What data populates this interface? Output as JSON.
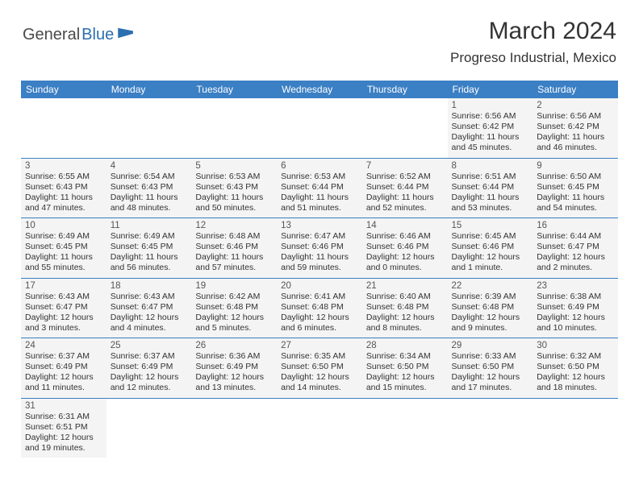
{
  "logo": {
    "text1": "General",
    "text2": "Blue"
  },
  "title": "March 2024",
  "location": "Progreso Industrial, Mexico",
  "colors": {
    "headerBlue": "#3b7fc4",
    "logoBlue": "#2b6fb0",
    "cellBg": "#f4f4f4",
    "divider": "#3b7fc4"
  },
  "weekdays": [
    "Sunday",
    "Monday",
    "Tuesday",
    "Wednesday",
    "Thursday",
    "Friday",
    "Saturday"
  ],
  "weeks": [
    [
      null,
      null,
      null,
      null,
      null,
      {
        "d": "1",
        "sr": "6:56 AM",
        "ss": "6:42 PM",
        "dl": "11 hours and 45 minutes."
      },
      {
        "d": "2",
        "sr": "6:56 AM",
        "ss": "6:42 PM",
        "dl": "11 hours and 46 minutes."
      }
    ],
    [
      {
        "d": "3",
        "sr": "6:55 AM",
        "ss": "6:43 PM",
        "dl": "11 hours and 47 minutes."
      },
      {
        "d": "4",
        "sr": "6:54 AM",
        "ss": "6:43 PM",
        "dl": "11 hours and 48 minutes."
      },
      {
        "d": "5",
        "sr": "6:53 AM",
        "ss": "6:43 PM",
        "dl": "11 hours and 50 minutes."
      },
      {
        "d": "6",
        "sr": "6:53 AM",
        "ss": "6:44 PM",
        "dl": "11 hours and 51 minutes."
      },
      {
        "d": "7",
        "sr": "6:52 AM",
        "ss": "6:44 PM",
        "dl": "11 hours and 52 minutes."
      },
      {
        "d": "8",
        "sr": "6:51 AM",
        "ss": "6:44 PM",
        "dl": "11 hours and 53 minutes."
      },
      {
        "d": "9",
        "sr": "6:50 AM",
        "ss": "6:45 PM",
        "dl": "11 hours and 54 minutes."
      }
    ],
    [
      {
        "d": "10",
        "sr": "6:49 AM",
        "ss": "6:45 PM",
        "dl": "11 hours and 55 minutes."
      },
      {
        "d": "11",
        "sr": "6:49 AM",
        "ss": "6:45 PM",
        "dl": "11 hours and 56 minutes."
      },
      {
        "d": "12",
        "sr": "6:48 AM",
        "ss": "6:46 PM",
        "dl": "11 hours and 57 minutes."
      },
      {
        "d": "13",
        "sr": "6:47 AM",
        "ss": "6:46 PM",
        "dl": "11 hours and 59 minutes."
      },
      {
        "d": "14",
        "sr": "6:46 AM",
        "ss": "6:46 PM",
        "dl": "12 hours and 0 minutes."
      },
      {
        "d": "15",
        "sr": "6:45 AM",
        "ss": "6:46 PM",
        "dl": "12 hours and 1 minute."
      },
      {
        "d": "16",
        "sr": "6:44 AM",
        "ss": "6:47 PM",
        "dl": "12 hours and 2 minutes."
      }
    ],
    [
      {
        "d": "17",
        "sr": "6:43 AM",
        "ss": "6:47 PM",
        "dl": "12 hours and 3 minutes."
      },
      {
        "d": "18",
        "sr": "6:43 AM",
        "ss": "6:47 PM",
        "dl": "12 hours and 4 minutes."
      },
      {
        "d": "19",
        "sr": "6:42 AM",
        "ss": "6:48 PM",
        "dl": "12 hours and 5 minutes."
      },
      {
        "d": "20",
        "sr": "6:41 AM",
        "ss": "6:48 PM",
        "dl": "12 hours and 6 minutes."
      },
      {
        "d": "21",
        "sr": "6:40 AM",
        "ss": "6:48 PM",
        "dl": "12 hours and 8 minutes."
      },
      {
        "d": "22",
        "sr": "6:39 AM",
        "ss": "6:48 PM",
        "dl": "12 hours and 9 minutes."
      },
      {
        "d": "23",
        "sr": "6:38 AM",
        "ss": "6:49 PM",
        "dl": "12 hours and 10 minutes."
      }
    ],
    [
      {
        "d": "24",
        "sr": "6:37 AM",
        "ss": "6:49 PM",
        "dl": "12 hours and 11 minutes."
      },
      {
        "d": "25",
        "sr": "6:37 AM",
        "ss": "6:49 PM",
        "dl": "12 hours and 12 minutes."
      },
      {
        "d": "26",
        "sr": "6:36 AM",
        "ss": "6:49 PM",
        "dl": "12 hours and 13 minutes."
      },
      {
        "d": "27",
        "sr": "6:35 AM",
        "ss": "6:50 PM",
        "dl": "12 hours and 14 minutes."
      },
      {
        "d": "28",
        "sr": "6:34 AM",
        "ss": "6:50 PM",
        "dl": "12 hours and 15 minutes."
      },
      {
        "d": "29",
        "sr": "6:33 AM",
        "ss": "6:50 PM",
        "dl": "12 hours and 17 minutes."
      },
      {
        "d": "30",
        "sr": "6:32 AM",
        "ss": "6:50 PM",
        "dl": "12 hours and 18 minutes."
      }
    ],
    [
      {
        "d": "31",
        "sr": "6:31 AM",
        "ss": "6:51 PM",
        "dl": "12 hours and 19 minutes."
      },
      null,
      null,
      null,
      null,
      null,
      null
    ]
  ],
  "labels": {
    "sunrise": "Sunrise:",
    "sunset": "Sunset:",
    "daylight": "Daylight:"
  }
}
